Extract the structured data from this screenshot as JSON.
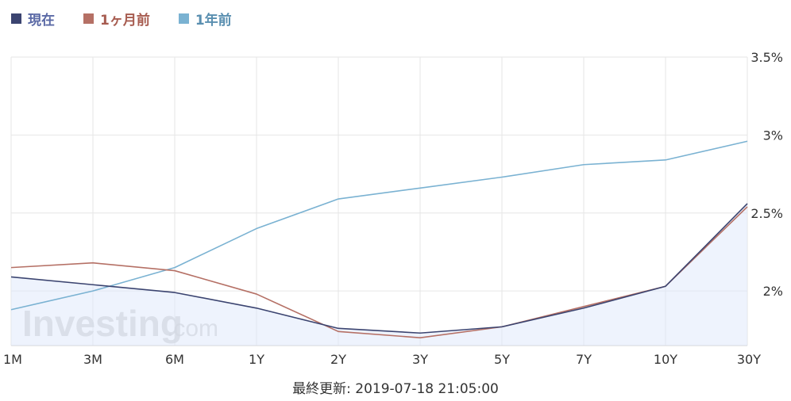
{
  "legend": [
    {
      "name": "現在",
      "color": "#3b4470",
      "text_color": "#5b6aa6"
    },
    {
      "name": "1ヶ月前",
      "color": "#b57065",
      "text_color": "#a75c50"
    },
    {
      "name": "1年前",
      "color": "#7ab2d2",
      "text_color": "#5a8fb0"
    }
  ],
  "footer": {
    "label": "最終更新: 2019-07-18 21:05:00"
  },
  "watermark": {
    "brand": "Investing",
    "suffix": ".com"
  },
  "chart_data": {
    "type": "line",
    "categories": [
      "1M",
      "3M",
      "6M",
      "1Y",
      "2Y",
      "3Y",
      "5Y",
      "7Y",
      "10Y",
      "30Y"
    ],
    "series": [
      {
        "name": "現在",
        "color": "#3b4470",
        "values": [
          2.09,
          2.04,
          1.99,
          1.89,
          1.76,
          1.73,
          1.77,
          1.89,
          2.03,
          2.56
        ],
        "area": true
      },
      {
        "name": "1ヶ月前",
        "color": "#b57065",
        "values": [
          2.15,
          2.18,
          2.13,
          1.98,
          1.74,
          1.7,
          1.77,
          1.9,
          2.03,
          2.54
        ]
      },
      {
        "name": "1年前",
        "color": "#7ab2d2",
        "values": [
          1.88,
          2.0,
          2.15,
          2.4,
          2.59,
          2.66,
          2.73,
          2.81,
          2.84,
          2.96
        ]
      }
    ],
    "y_ticks": [
      "3.5%",
      "3%",
      "2.5%",
      "2%"
    ],
    "y_tick_values": [
      3.5,
      3.0,
      2.5,
      2.0
    ],
    "ylim": [
      1.65,
      3.5
    ],
    "y_axis_position": "right",
    "grid": true
  }
}
